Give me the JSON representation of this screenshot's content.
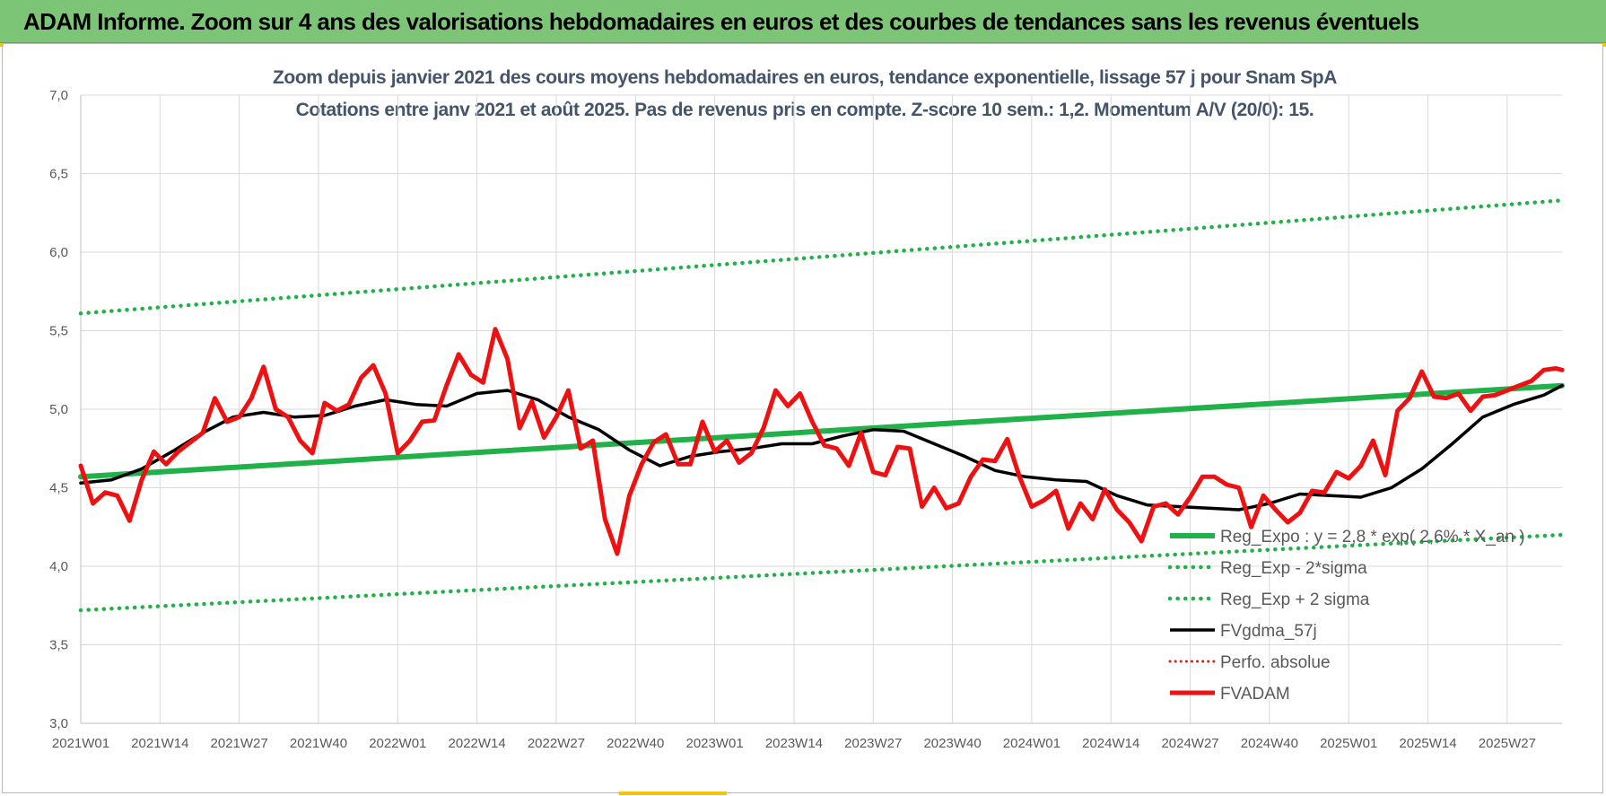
{
  "header": {
    "title": "ADAM Informe. Zoom sur 4 ans des valorisations hebdomadaires en euros et des courbes de tendances sans les revenus éventuels"
  },
  "chart_data": {
    "type": "line",
    "title_line1": "Zoom depuis janvier 2021 des cours moyens hebdomadaires en euros, tendance exponentielle, lissage 57 j pour Snam SpA",
    "title_line2": "Cotations entre janv 2021 et août 2025.  Pas de revenus pris en compte. Z-score 10 sem.: 1,2. Momentum A/V (20/0): 15.",
    "ylim": [
      3.0,
      7.0
    ],
    "y_ticks": [
      "3,0",
      "3,5",
      "4,0",
      "4,5",
      "5,0",
      "5,5",
      "6,0",
      "6,5",
      "7,0"
    ],
    "y_tick_values": [
      3.0,
      3.5,
      4.0,
      4.5,
      5.0,
      5.5,
      6.0,
      6.5,
      7.0
    ],
    "x_ticks": [
      "2021W01",
      "2021W14",
      "2021W27",
      "2021W40",
      "2022W01",
      "2022W14",
      "2022W27",
      "2022W40",
      "2023W01",
      "2023W14",
      "2023W27",
      "2023W40",
      "2024W01",
      "2024W14",
      "2024W27",
      "2024W40",
      "2025W01",
      "2025W14",
      "2025W27"
    ],
    "grid": "both",
    "legend_position": "bottom-right",
    "colors": {
      "header_bg": "#7cc576",
      "reg_expo": "#21b14b",
      "reg_band": "#21b14b",
      "fvgdma": "#000000",
      "perfo": "#e01b1b",
      "fvadam": "#ee1111"
    },
    "series": [
      {
        "name": "Reg_Expo : y = 2,8 * exp( 2,6% * X_an )",
        "style": "solid-thick",
        "x_index": [
          0,
          243
        ],
        "values": [
          4.57,
          5.15
        ]
      },
      {
        "name": "Reg_Exp - 2*sigma",
        "style": "dotted",
        "x_index": [
          0,
          243
        ],
        "values": [
          3.72,
          4.2
        ]
      },
      {
        "name": "Reg_Exp + 2 sigma",
        "style": "dotted",
        "x_index": [
          0,
          243
        ],
        "values": [
          5.61,
          6.33
        ]
      },
      {
        "name": "FVgdma_57j",
        "style": "solid",
        "x_index": [
          0,
          5,
          10,
          15,
          20,
          25,
          30,
          35,
          40,
          45,
          50,
          55,
          60,
          65,
          70,
          75,
          80,
          85,
          90,
          95,
          100,
          105,
          110,
          115,
          120,
          125,
          130,
          135,
          140,
          145,
          150,
          155,
          160,
          165,
          170,
          175,
          180,
          185,
          190,
          195,
          200,
          205,
          210,
          215,
          220,
          225,
          230,
          235,
          240,
          243
        ],
        "values": [
          4.53,
          4.55,
          4.62,
          4.73,
          4.85,
          4.95,
          4.98,
          4.95,
          4.96,
          5.02,
          5.06,
          5.03,
          5.02,
          5.1,
          5.12,
          5.06,
          4.95,
          4.87,
          4.74,
          4.64,
          4.7,
          4.73,
          4.75,
          4.78,
          4.78,
          4.83,
          4.87,
          4.86,
          4.78,
          4.7,
          4.61,
          4.57,
          4.55,
          4.54,
          4.45,
          4.39,
          4.38,
          4.37,
          4.36,
          4.4,
          4.46,
          4.45,
          4.44,
          4.5,
          4.62,
          4.78,
          4.95,
          5.03,
          5.09,
          5.15
        ]
      },
      {
        "name": "Perfo. absolue",
        "style": "dotted-red",
        "x_index": [],
        "values": []
      },
      {
        "name": "FVADAM",
        "style": "solid-thick-red",
        "x_index": [
          0,
          2,
          4,
          6,
          8,
          10,
          12,
          14,
          16,
          18,
          20,
          22,
          24,
          26,
          28,
          30,
          32,
          34,
          36,
          38,
          40,
          42,
          44,
          46,
          48,
          50,
          52,
          54,
          56,
          58,
          60,
          62,
          64,
          66,
          68,
          70,
          72,
          74,
          76,
          78,
          80,
          82,
          84,
          86,
          88,
          90,
          92,
          94,
          96,
          98,
          100,
          102,
          104,
          106,
          108,
          110,
          112,
          114,
          116,
          118,
          120,
          122,
          124,
          126,
          128,
          130,
          132,
          134,
          136,
          138,
          140,
          142,
          144,
          146,
          148,
          150,
          152,
          154,
          156,
          158,
          160,
          162,
          164,
          166,
          168,
          170,
          172,
          174,
          176,
          178,
          180,
          182,
          184,
          186,
          188,
          190,
          192,
          194,
          196,
          198,
          200,
          202,
          204,
          206,
          208,
          210,
          212,
          214,
          216,
          218,
          220,
          222,
          224,
          226,
          228,
          230,
          232,
          234,
          236,
          238,
          240,
          242,
          243
        ],
        "values": [
          4.64,
          4.4,
          4.47,
          4.45,
          4.29,
          4.55,
          4.73,
          4.65,
          4.73,
          4.79,
          4.85,
          5.07,
          4.92,
          4.95,
          5.07,
          5.27,
          5.0,
          4.95,
          4.8,
          4.72,
          5.04,
          4.99,
          5.03,
          5.2,
          5.28,
          5.1,
          4.72,
          4.8,
          4.92,
          4.93,
          5.15,
          5.35,
          5.22,
          5.17,
          5.51,
          5.32,
          4.88,
          5.05,
          4.82,
          4.95,
          5.12,
          4.75,
          4.8,
          4.3,
          4.08,
          4.45,
          4.65,
          4.79,
          4.84,
          4.65,
          4.65,
          4.92,
          4.73,
          4.8,
          4.66,
          4.72,
          4.88,
          5.12,
          5.02,
          5.1,
          4.92,
          4.77,
          4.75,
          4.64,
          4.85,
          4.6,
          4.58,
          4.76,
          4.75,
          4.38,
          4.5,
          4.37,
          4.4,
          4.57,
          4.68,
          4.67,
          4.81,
          4.57,
          4.38,
          4.42,
          4.48,
          4.24,
          4.4,
          4.3,
          4.49,
          4.36,
          4.28,
          4.16,
          4.38,
          4.4,
          4.33,
          4.44,
          4.57,
          4.57,
          4.52,
          4.5,
          4.25,
          4.45,
          4.36,
          4.28,
          4.34,
          4.48,
          4.47,
          4.6,
          4.56,
          4.64,
          4.8,
          4.58,
          4.99,
          5.07,
          5.24,
          5.08,
          5.07,
          5.1,
          4.99,
          5.08,
          5.09,
          5.12,
          5.15,
          5.18,
          5.25,
          5.26,
          5.25
        ]
      }
    ]
  }
}
